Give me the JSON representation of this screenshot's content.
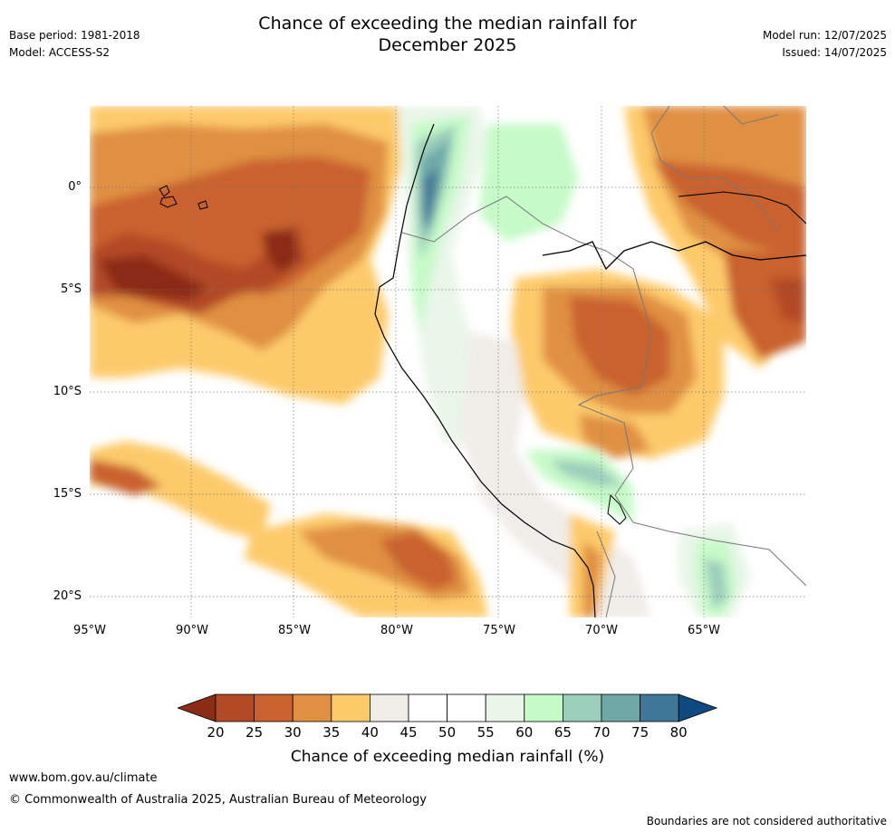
{
  "header": {
    "title_line1": "Chance of exceeding the median rainfall for",
    "title_line2": "December 2025",
    "base_period": "Base period: 1981-2018",
    "model": "Model: ACCESS-S2",
    "model_run": "Model run: 12/07/2025",
    "issued": "Issued: 14/07/2025"
  },
  "map": {
    "region": "Western South America and Eastern Pacific",
    "lon_range": [
      -95,
      -60
    ],
    "lat_range": [
      -21,
      4
    ],
    "lat_labels": [
      "0°",
      "5°S",
      "10°S",
      "15°S",
      "20°S"
    ],
    "lon_labels": [
      "95°W",
      "90°W",
      "85°W",
      "80°W",
      "75°W",
      "70°W",
      "65°W"
    ]
  },
  "colorbar": {
    "title": "Chance of exceeding median rainfall (%)",
    "ticks": [
      "20",
      "25",
      "30",
      "35",
      "40",
      "45",
      "50",
      "55",
      "60",
      "65",
      "70",
      "75",
      "80"
    ],
    "colors": [
      "#8b2c16",
      "#b24a26",
      "#c9622f",
      "#e09042",
      "#fdca6a",
      "#f0ede8",
      "#ffffff",
      "#ffffff",
      "#e9f6e9",
      "#c6fac8",
      "#9ccfbb",
      "#6ea9a8",
      "#3f7896",
      "#0e4a80"
    ]
  },
  "footer": {
    "url": "www.bom.gov.au/climate",
    "copyright": "© Commonwealth of Australia 2025, Australian Bureau of Meteorology",
    "disclaimer": "Boundaries are not considered authoritative"
  }
}
